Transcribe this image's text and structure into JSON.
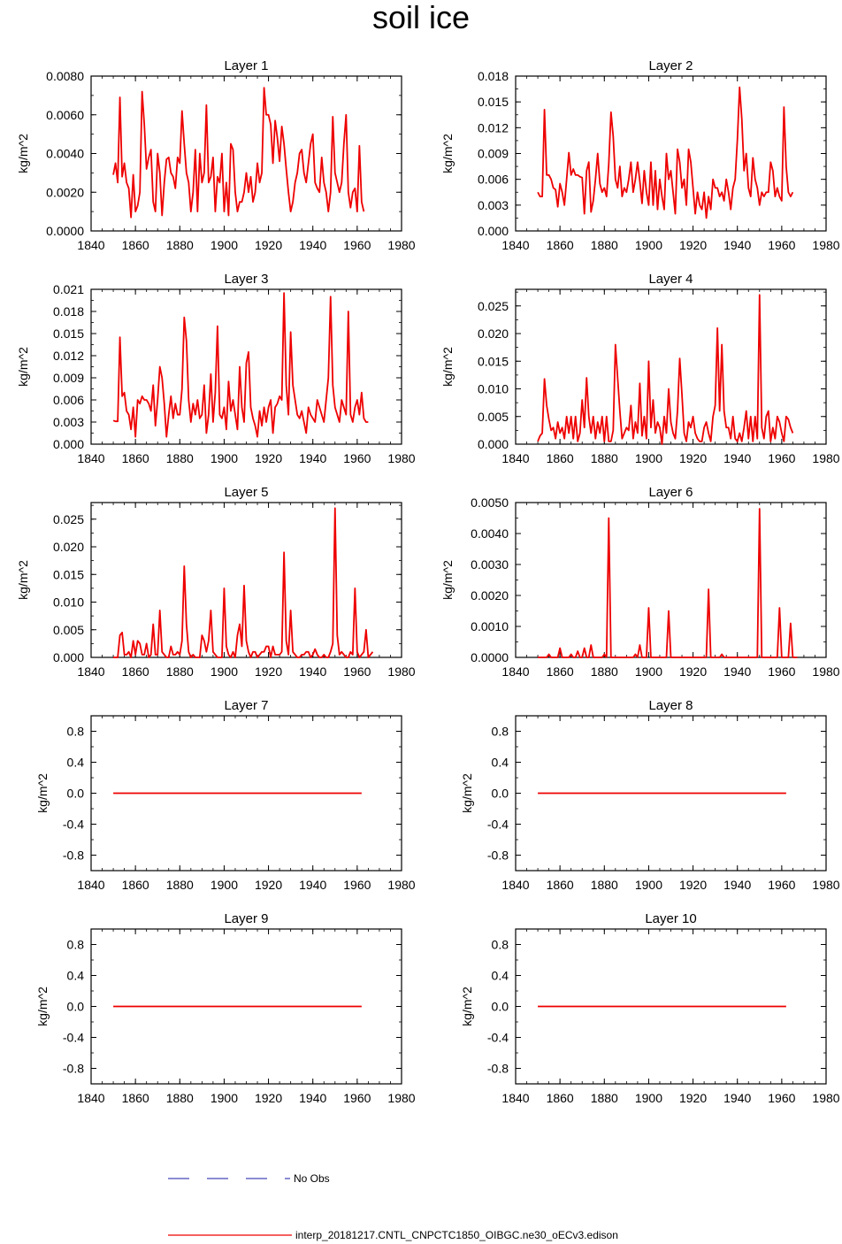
{
  "title": "soil ice",
  "legend": {
    "obs_label": "No Obs",
    "obs_color": "#1a1aa8",
    "model_label": "interp_20181217.CNTL_CNPCTC1850_OIBGC.ne30_oECv3.edison",
    "model_color": "#ee0000"
  },
  "chart_data": [
    {
      "type": "line",
      "title": "Layer 1",
      "ylabel": "kg/m^2",
      "xlim": [
        1840,
        1980
      ],
      "ylim": [
        0,
        0.008
      ],
      "xticks": [
        "1840",
        "1860",
        "1880",
        "1900",
        "1920",
        "1940",
        "1960",
        "1980"
      ],
      "yticks": [
        "0.0000",
        "0.0020",
        "0.0040",
        "0.0060",
        "0.0080"
      ],
      "x_start": 1850,
      "values": [
        0.0029,
        0.0035,
        0.0025,
        0.0069,
        0.0028,
        0.0035,
        0.0025,
        0.0022,
        0.0007,
        0.0029,
        0.001,
        0.0013,
        0.002,
        0.0072,
        0.0055,
        0.0032,
        0.0038,
        0.0042,
        0.0015,
        0.001,
        0.004,
        0.003,
        0.0008,
        0.0025,
        0.0037,
        0.0038,
        0.003,
        0.0028,
        0.0022,
        0.0038,
        0.0035,
        0.0062,
        0.0045,
        0.003,
        0.0025,
        0.001,
        0.002,
        0.0042,
        0.001,
        0.004,
        0.0025,
        0.003,
        0.0065,
        0.0025,
        0.0028,
        0.0038,
        0.001,
        0.0028,
        0.0025,
        0.004,
        0.001,
        0.0025,
        0.0008,
        0.0045,
        0.0042,
        0.002,
        0.001,
        0.0015,
        0.0015,
        0.002,
        0.003,
        0.002,
        0.0028,
        0.0015,
        0.002,
        0.0035,
        0.0025,
        0.003,
        0.0074,
        0.006,
        0.006,
        0.0055,
        0.0035,
        0.0057,
        0.0048,
        0.0036,
        0.0054,
        0.0045,
        0.0032,
        0.002,
        0.001,
        0.0015,
        0.0025,
        0.003,
        0.004,
        0.0042,
        0.003,
        0.0025,
        0.0035,
        0.0045,
        0.005,
        0.0025,
        0.0022,
        0.002,
        0.0038,
        0.0025,
        0.002,
        0.001,
        0.002,
        0.0059,
        0.003,
        0.0025,
        0.002,
        0.0025,
        0.0045,
        0.006,
        0.002,
        0.0012,
        0.002,
        0.0022,
        0.001,
        0.0044,
        0.0015,
        0.001
      ]
    },
    {
      "type": "line",
      "title": "Layer 2",
      "ylabel": "kg/m^2",
      "xlim": [
        1840,
        1980
      ],
      "ylim": [
        0,
        0.018
      ],
      "xticks": [
        "1840",
        "1860",
        "1880",
        "1900",
        "1920",
        "1940",
        "1960",
        "1980"
      ],
      "yticks": [
        "0.000",
        "0.003",
        "0.006",
        "0.009",
        "0.012",
        "0.015",
        "0.018"
      ],
      "x_start": 1850,
      "values": [
        0.0045,
        0.004,
        0.004,
        0.0141,
        0.0065,
        0.0065,
        0.006,
        0.005,
        0.0048,
        0.0028,
        0.0055,
        0.0045,
        0.003,
        0.006,
        0.0091,
        0.0065,
        0.0072,
        0.0065,
        0.0065,
        0.0063,
        0.0062,
        0.002,
        0.007,
        0.008,
        0.0022,
        0.0035,
        0.006,
        0.009,
        0.0055,
        0.0045,
        0.005,
        0.004,
        0.0078,
        0.0138,
        0.011,
        0.006,
        0.005,
        0.0075,
        0.004,
        0.005,
        0.0045,
        0.006,
        0.008,
        0.0045,
        0.006,
        0.008,
        0.0058,
        0.0032,
        0.007,
        0.0045,
        0.003,
        0.008,
        0.003,
        0.007,
        0.0025,
        0.006,
        0.004,
        0.0025,
        0.009,
        0.006,
        0.007,
        0.0045,
        0.002,
        0.0095,
        0.008,
        0.005,
        0.006,
        0.003,
        0.0095,
        0.008,
        0.005,
        0.002,
        0.0045,
        0.003,
        0.0025,
        0.0045,
        0.0015,
        0.004,
        0.0025,
        0.006,
        0.005,
        0.005,
        0.004,
        0.0045,
        0.0035,
        0.006,
        0.0045,
        0.0025,
        0.005,
        0.006,
        0.0106,
        0.0167,
        0.013,
        0.007,
        0.009,
        0.005,
        0.004,
        0.0085,
        0.006,
        0.005,
        0.003,
        0.0045,
        0.004,
        0.0045,
        0.0045,
        0.008,
        0.007,
        0.004,
        0.005,
        0.004,
        0.0035,
        0.0144,
        0.0075,
        0.0045,
        0.004,
        0.0045
      ]
    },
    {
      "type": "line",
      "title": "Layer 3",
      "ylabel": "kg/m^2",
      "xlim": [
        1840,
        1980
      ],
      "ylim": [
        0,
        0.021
      ],
      "xticks": [
        "1840",
        "1860",
        "1880",
        "1900",
        "1920",
        "1940",
        "1960",
        "1980"
      ],
      "yticks": [
        "0.000",
        "0.003",
        "0.006",
        "0.009",
        "0.012",
        "0.015",
        "0.018",
        "0.021"
      ],
      "x_start": 1850,
      "values": [
        0.0032,
        0.0031,
        0.0031,
        0.0145,
        0.0065,
        0.007,
        0.0045,
        0.004,
        0.002,
        0.005,
        0.001,
        0.006,
        0.0055,
        0.0065,
        0.006,
        0.006,
        0.0055,
        0.0045,
        0.008,
        0.0025,
        0.006,
        0.0105,
        0.009,
        0.0055,
        0.001,
        0.004,
        0.0065,
        0.0035,
        0.0055,
        0.004,
        0.004,
        0.0075,
        0.0172,
        0.014,
        0.006,
        0.003,
        0.0055,
        0.004,
        0.006,
        0.0035,
        0.004,
        0.008,
        0.0015,
        0.004,
        0.0095,
        0.003,
        0.007,
        0.016,
        0.004,
        0.0035,
        0.005,
        0.002,
        0.0085,
        0.0045,
        0.006,
        0.004,
        0.002,
        0.0105,
        0.005,
        0.003,
        0.011,
        0.0125,
        0.005,
        0.0035,
        0.0025,
        0.001,
        0.0045,
        0.0025,
        0.005,
        0.003,
        0.005,
        0.006,
        0.0015,
        0.005,
        0.0055,
        0.0065,
        0.006,
        0.0205,
        0.008,
        0.004,
        0.0152,
        0.008,
        0.006,
        0.004,
        0.0035,
        0.0045,
        0.003,
        0.0015,
        0.005,
        0.004,
        0.0035,
        0.003,
        0.006,
        0.005,
        0.004,
        0.003,
        0.006,
        0.009,
        0.02,
        0.008,
        0.005,
        0.004,
        0.003,
        0.006,
        0.005,
        0.004,
        0.018,
        0.004,
        0.003,
        0.005,
        0.006,
        0.004,
        0.007,
        0.0035,
        0.003,
        0.003
      ]
    },
    {
      "type": "line",
      "title": "Layer 4",
      "ylabel": "kg/m^2",
      "xlim": [
        1840,
        1980
      ],
      "ylim": [
        0,
        0.028
      ],
      "xticks": [
        "1840",
        "1860",
        "1880",
        "1900",
        "1920",
        "1940",
        "1960",
        "1980"
      ],
      "yticks": [
        "0.000",
        "0.005",
        "0.010",
        "0.015",
        "0.020",
        "0.025"
      ],
      "x_start": 1850,
      "values": [
        0.0005,
        0.0015,
        0.002,
        0.0118,
        0.007,
        0.0045,
        0.0025,
        0.003,
        0.001,
        0.004,
        0.002,
        0.003,
        0.001,
        0.005,
        0.002,
        0.005,
        0.001,
        0.005,
        0.0005,
        0.002,
        0.008,
        0.003,
        0.012,
        0.005,
        0.002,
        0.005,
        0.001,
        0.004,
        0.002,
        0.005,
        0.0005,
        0.005,
        0.0005,
        0.0005,
        0.0025,
        0.018,
        0.012,
        0.006,
        0.001,
        0.002,
        0.003,
        0.0025,
        0.007,
        0.001,
        0.004,
        0.002,
        0.011,
        0.0015,
        0.005,
        0.001,
        0.015,
        0.003,
        0.008,
        0.002,
        0.004,
        0.003,
        0.0,
        0.005,
        0.002,
        0.01,
        0.004,
        0.002,
        0.001,
        0.006,
        0.0155,
        0.009,
        0.002,
        0.0005,
        0.004,
        0.003,
        0.005,
        0.002,
        0.001,
        0.0005,
        0.0005,
        0.003,
        0.004,
        0.002,
        0.0005,
        0.005,
        0.007,
        0.021,
        0.006,
        0.018,
        0.006,
        0.003,
        0.003,
        0.001,
        0.005,
        0.001,
        0.0005,
        0.002,
        0.0005,
        0.003,
        0.006,
        0.001,
        0.005,
        0.0005,
        0.005,
        0.001,
        0.027,
        0.003,
        0.001,
        0.005,
        0.006,
        0.0005,
        0.003,
        0.001,
        0.005,
        0.004,
        0.002,
        0.0005,
        0.005,
        0.0045,
        0.003,
        0.002
      ]
    },
    {
      "type": "line",
      "title": "Layer 5",
      "ylabel": "kg/m^2",
      "xlim": [
        1840,
        1980
      ],
      "ylim": [
        0,
        0.028
      ],
      "xticks": [
        "1840",
        "1860",
        "1880",
        "1900",
        "1920",
        "1940",
        "1960",
        "1980"
      ],
      "yticks": [
        "0.000",
        "0.005",
        "0.010",
        "0.015",
        "0.020",
        "0.025"
      ],
      "x_start": 1850,
      "values": [
        0.0,
        0.0,
        0.0,
        0.004,
        0.0045,
        0.0005,
        0.0005,
        0.001,
        0.0,
        0.003,
        0.0005,
        0.003,
        0.0025,
        0.0005,
        0.0005,
        0.0025,
        0.0,
        0.0005,
        0.006,
        0.0005,
        0.0005,
        0.0085,
        0.001,
        0.0005,
        0.0,
        0.0,
        0.002,
        0.0005,
        0.0005,
        0.001,
        0.0005,
        0.003,
        0.0165,
        0.006,
        0.001,
        0.0,
        0.0005,
        0.0,
        0.0,
        0.0,
        0.004,
        0.003,
        0.001,
        0.003,
        0.0085,
        0.001,
        0.0005,
        0.0,
        0.0,
        0.0,
        0.0125,
        0.002,
        0.0005,
        0.0,
        0.001,
        0.0,
        0.004,
        0.006,
        0.002,
        0.013,
        0.003,
        0.001,
        0.0,
        0.001,
        0.001,
        0.0,
        0.0005,
        0.001,
        0.001,
        0.002,
        0.002,
        0.0,
        0.002,
        0.0005,
        0.0005,
        0.0005,
        0.001,
        0.019,
        0.003,
        0.0005,
        0.0085,
        0.001,
        0.0005,
        0.0,
        0.0,
        0.0005,
        0.0005,
        0.001,
        0.001,
        0.0,
        0.0005,
        0.0015,
        0.0005,
        0.0,
        0.0,
        0.0005,
        0.0,
        0.0,
        0.001,
        0.0025,
        0.027,
        0.004,
        0.0005,
        0.001,
        0.0005,
        0.0,
        0.0,
        0.001,
        0.0005,
        0.0125,
        0.001,
        0.0,
        0.0005,
        0.001,
        0.005,
        0.0,
        0.0005,
        0.001
      ]
    },
    {
      "type": "line",
      "title": "Layer 6",
      "ylabel": "kg/m^2",
      "xlim": [
        1840,
        1980
      ],
      "ylim": [
        0,
        0.005
      ],
      "xticks": [
        "1840",
        "1860",
        "1880",
        "1900",
        "1920",
        "1940",
        "1960",
        "1980"
      ],
      "yticks": [
        "0.0000",
        "0.0010",
        "0.0020",
        "0.0030",
        "0.0040",
        "0.0050"
      ],
      "x_start": 1850,
      "values": [
        0.0,
        0.0,
        0.0,
        0.0,
        0.0,
        0.0001,
        0.0,
        0.0,
        0.0,
        0.0,
        0.0003,
        0.0,
        0.0,
        0.0,
        0.0,
        0.0001,
        0.0,
        0.0,
        0.0002,
        0.0,
        0.0,
        0.0003,
        0.0,
        0.0,
        0.0004,
        0.0,
        0.0,
        0.0,
        0.0,
        0.0,
        0.0001,
        0.0,
        0.0045,
        0.0,
        0.0,
        0.0,
        0.0,
        0.0,
        0.0,
        0.0,
        0.0,
        0.0,
        0.0,
        0.0,
        0.0001,
        0.0,
        0.0004,
        0.0,
        0.0,
        0.0,
        0.0016,
        0.0,
        0.0,
        0.0,
        0.0,
        0.0,
        0.0,
        0.0,
        0.0,
        0.0015,
        0.0,
        0.0,
        0.0,
        0.0,
        0.0,
        0.0,
        0.0,
        0.0,
        0.0,
        0.0,
        0.0,
        0.0,
        0.0,
        0.0,
        0.0,
        0.0,
        0.0,
        0.0022,
        0.0,
        0.0,
        0.0,
        0.0,
        0.0,
        0.0001,
        0.0,
        0.0,
        0.0,
        0.0,
        0.0,
        0.0,
        0.0,
        0.0,
        0.0,
        0.0,
        0.0,
        0.0,
        0.0,
        0.0,
        0.0,
        0.0,
        0.0048,
        0.0,
        0.0,
        0.0,
        0.0,
        0.0,
        0.0,
        0.0,
        0.0,
        0.0016,
        0.0,
        0.0,
        0.0,
        0.0,
        0.0011,
        0.0,
        0.0,
        0.0
      ]
    },
    {
      "type": "line",
      "title": "Layer 7",
      "ylabel": "kg/m^2",
      "xlim": [
        1840,
        1980
      ],
      "ylim": [
        -1,
        1
      ],
      "xticks": [
        "1840",
        "1860",
        "1880",
        "1900",
        "1920",
        "1940",
        "1960",
        "1980"
      ],
      "yticks": [
        "-0.8",
        "-0.4",
        "0.0",
        "0.4",
        "0.8"
      ],
      "x_start": 1850,
      "x_end": 1962,
      "constant": 0
    },
    {
      "type": "line",
      "title": "Layer 8",
      "ylabel": "kg/m^2",
      "xlim": [
        1840,
        1980
      ],
      "ylim": [
        -1,
        1
      ],
      "xticks": [
        "1840",
        "1860",
        "1880",
        "1900",
        "1920",
        "1940",
        "1960",
        "1980"
      ],
      "yticks": [
        "-0.8",
        "-0.4",
        "0.0",
        "0.4",
        "0.8"
      ],
      "x_start": 1850,
      "x_end": 1962,
      "constant": 0
    },
    {
      "type": "line",
      "title": "Layer 9",
      "ylabel": "kg/m^2",
      "xlim": [
        1840,
        1980
      ],
      "ylim": [
        -1,
        1
      ],
      "xticks": [
        "1840",
        "1860",
        "1880",
        "1900",
        "1920",
        "1940",
        "1960",
        "1980"
      ],
      "yticks": [
        "-0.8",
        "-0.4",
        "0.0",
        "0.4",
        "0.8"
      ],
      "x_start": 1850,
      "x_end": 1962,
      "constant": 0
    },
    {
      "type": "line",
      "title": "Layer 10",
      "ylabel": "kg/m^2",
      "xlim": [
        1840,
        1980
      ],
      "ylim": [
        -1,
        1
      ],
      "xticks": [
        "1840",
        "1860",
        "1880",
        "1900",
        "1920",
        "1940",
        "1960",
        "1980"
      ],
      "yticks": [
        "-0.8",
        "-0.4",
        "0.0",
        "0.4",
        "0.8"
      ],
      "x_start": 1850,
      "x_end": 1962,
      "constant": 0
    }
  ]
}
